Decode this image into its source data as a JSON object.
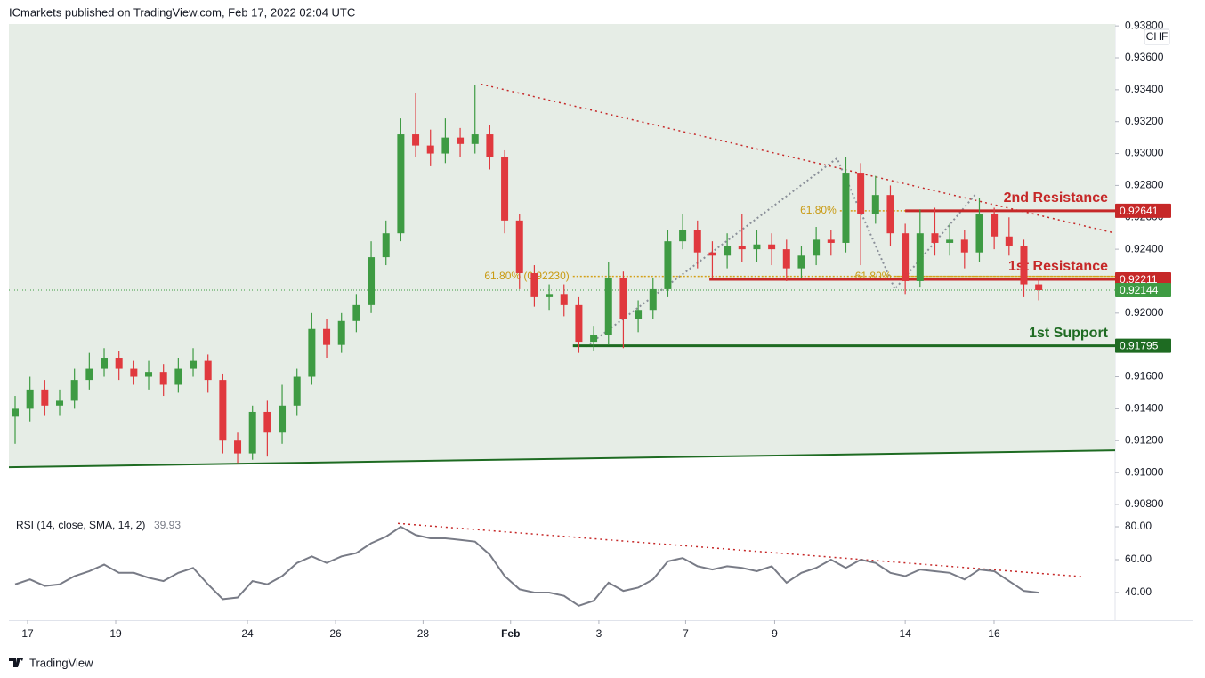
{
  "header": "ICmarkets published on TradingView.com, Feb 17, 2022 02:04 UTC",
  "footer": "TradingView",
  "chart_data": {
    "type": "candlestick",
    "currency": "CHF",
    "xlim": [
      -0.42,
      74.15
    ],
    "xticks": [
      {
        "value": 0.84,
        "label": "17"
      },
      {
        "value": 6.78,
        "label": "19"
      },
      {
        "value": 15.66,
        "label": "24"
      },
      {
        "value": 21.6,
        "label": "26"
      },
      {
        "value": 27.5,
        "label": "28"
      },
      {
        "value": 33.4,
        "label": "Feb"
      },
      {
        "value": 39.35,
        "label": "3"
      },
      {
        "value": 45.2,
        "label": "7"
      },
      {
        "value": 51.2,
        "label": "9"
      },
      {
        "value": 60.0,
        "label": "14"
      },
      {
        "value": 65.99,
        "label": "16"
      }
    ],
    "ylim": [
      0.90755,
      0.93812
    ],
    "yticks": [
      {
        "value": 0.938,
        "label": "0.93800"
      },
      {
        "value": 0.936,
        "label": "0.93600"
      },
      {
        "value": 0.934,
        "label": "0.93400"
      },
      {
        "value": 0.932,
        "label": "0.93200"
      },
      {
        "value": 0.93,
        "label": "0.93000"
      },
      {
        "value": 0.928,
        "label": "0.92800"
      },
      {
        "value": 0.926,
        "label": "0.92600"
      },
      {
        "value": 0.924,
        "label": "0.92400"
      },
      {
        "value": 0.922,
        "label": "0.92200"
      },
      {
        "value": 0.92,
        "label": "0.92000"
      },
      {
        "value": 0.918,
        "label": "0.91800"
      },
      {
        "value": 0.916,
        "label": "0.91600"
      },
      {
        "value": 0.914,
        "label": "0.91400"
      },
      {
        "value": 0.912,
        "label": "0.91200"
      },
      {
        "value": 0.91,
        "label": "0.91000"
      },
      {
        "value": 0.908,
        "label": "0.90800"
      }
    ],
    "grid": false,
    "up_color": "#3e9b43",
    "down_color": "#e0393e",
    "open": [
      0.9135,
      0.914,
      0.9152,
      0.9142,
      0.9145,
      0.9158,
      0.9165,
      0.9172,
      0.9165,
      0.916,
      0.9163,
      0.9155,
      0.9165,
      0.917,
      0.9158,
      0.912,
      0.9112,
      0.9138,
      0.9125,
      0.9142,
      0.916,
      0.919,
      0.918,
      0.9195,
      0.9205,
      0.9235,
      0.925,
      0.9312,
      0.9305,
      0.93,
      0.931,
      0.9306,
      0.9312,
      0.9298,
      0.9258,
      0.9225,
      0.921,
      0.9212,
      0.9205,
      0.9182,
      0.9186,
      0.9222,
      0.9196,
      0.9202,
      0.9215,
      0.9245,
      0.9252,
      0.9238,
      0.9236,
      0.9242,
      0.924,
      0.9243,
      0.924,
      0.9228,
      0.9236,
      0.9246,
      0.9244,
      0.9288,
      0.9262,
      0.9274,
      0.925,
      0.922,
      0.925,
      0.9244,
      0.9246,
      0.9238,
      0.9262,
      0.9248,
      0.9242,
      0.9218
    ],
    "high": [
      0.9148,
      0.916,
      0.9158,
      0.9152,
      0.9165,
      0.9175,
      0.9178,
      0.9176,
      0.917,
      0.917,
      0.9168,
      0.9172,
      0.9178,
      0.9174,
      0.9162,
      0.9125,
      0.9142,
      0.9145,
      0.9155,
      0.9165,
      0.92,
      0.9196,
      0.92,
      0.9212,
      0.9245,
      0.9258,
      0.9322,
      0.9338,
      0.9315,
      0.9322,
      0.9316,
      0.9343,
      0.9318,
      0.9302,
      0.9262,
      0.923,
      0.9218,
      0.9218,
      0.921,
      0.9192,
      0.9232,
      0.9226,
      0.9208,
      0.9222,
      0.9252,
      0.9262,
      0.9258,
      0.9245,
      0.925,
      0.9262,
      0.9252,
      0.925,
      0.9246,
      0.9242,
      0.9254,
      0.9252,
      0.9298,
      0.9294,
      0.9286,
      0.928,
      0.9256,
      0.9265,
      0.9266,
      0.9256,
      0.9252,
      0.9272,
      0.9266,
      0.926,
      0.9246,
      0.9222
    ],
    "low": [
      0.9118,
      0.9132,
      0.9136,
      0.9136,
      0.914,
      0.9152,
      0.916,
      0.9158,
      0.9155,
      0.9152,
      0.9148,
      0.915,
      0.916,
      0.915,
      0.9112,
      0.9106,
      0.9108,
      0.911,
      0.9118,
      0.9136,
      0.9155,
      0.9172,
      0.9175,
      0.9188,
      0.92,
      0.923,
      0.9245,
      0.9298,
      0.9292,
      0.9294,
      0.9298,
      0.93,
      0.929,
      0.925,
      0.9215,
      0.9204,
      0.9202,
      0.9198,
      0.9175,
      0.9176,
      0.918,
      0.9178,
      0.9188,
      0.9196,
      0.921,
      0.924,
      0.9228,
      0.9222,
      0.9228,
      0.9232,
      0.9232,
      0.923,
      0.922,
      0.9222,
      0.923,
      0.9236,
      0.9238,
      0.923,
      0.9256,
      0.9242,
      0.9212,
      0.9216,
      0.9236,
      0.9236,
      0.9228,
      0.9232,
      0.924,
      0.9236,
      0.921,
      0.9208
    ],
    "close": [
      0.914,
      0.9152,
      0.9142,
      0.9145,
      0.9158,
      0.9165,
      0.9172,
      0.9165,
      0.916,
      0.9163,
      0.9155,
      0.9165,
      0.917,
      0.9158,
      0.912,
      0.9112,
      0.9138,
      0.9125,
      0.9142,
      0.916,
      0.919,
      0.918,
      0.9195,
      0.9205,
      0.9235,
      0.925,
      0.9312,
      0.9305,
      0.93,
      0.931,
      0.9306,
      0.9312,
      0.9298,
      0.9258,
      0.9225,
      0.921,
      0.9212,
      0.9205,
      0.9182,
      0.9186,
      0.9222,
      0.9196,
      0.9202,
      0.9215,
      0.9245,
      0.9252,
      0.9238,
      0.9236,
      0.9242,
      0.924,
      0.9243,
      0.924,
      0.9228,
      0.9236,
      0.9246,
      0.9244,
      0.9288,
      0.9262,
      0.9274,
      0.925,
      0.922,
      0.925,
      0.9244,
      0.9246,
      0.9238,
      0.9262,
      0.9248,
      0.9242,
      0.9218,
      0.92144
    ],
    "last_price": 0.92144,
    "levels": [
      {
        "label": "2nd Resistance",
        "value": 0.92641,
        "start": 60.0,
        "color": "#c62828"
      },
      {
        "label": "1st Resistance",
        "value": 0.92211,
        "start": 46.8,
        "color": "#c62828"
      },
      {
        "label": "1st Support",
        "value": 0.91795,
        "start": 37.6,
        "color": "#1e6b22"
      }
    ],
    "fib_levels": [
      {
        "label": "61.80% (0.92230)",
        "value": 0.9223,
        "start": 37.6
      },
      {
        "label": "61.80%",
        "value": 0.92641,
        "start": 55.6
      },
      {
        "label": "61.80%",
        "value": 0.9223,
        "start": 59.3
      }
    ],
    "trendlines": [
      {
        "x": [
          31.4,
          73.97
        ],
        "y": [
          0.93435,
          0.92505
        ],
        "color": "#c62828",
        "style": "dotted"
      },
      {
        "x": [
          -0.42,
          74.15
        ],
        "y": [
          0.91033,
          0.91139
        ],
        "color": "#1e6b22",
        "style": "solid"
      }
    ],
    "zigzag": {
      "x": [
        38.5,
        55.4,
        59.3,
        64.7
      ],
      "y": [
        0.9179,
        0.9297,
        0.9215,
        0.9274
      ]
    },
    "rsi": {
      "label": "RSI (14, close, SMA, 14, 2)",
      "last": 39.93,
      "ylim": [
        23.24,
        87.57
      ],
      "yticks": [
        {
          "value": 80,
          "label": "80.00"
        },
        {
          "value": 60,
          "label": "60.00"
        },
        {
          "value": 40,
          "label": "40.00"
        }
      ],
      "color": "#787b86",
      "values": [
        45,
        48,
        44,
        45,
        50,
        53,
        57,
        52,
        52,
        49,
        47,
        52,
        55,
        45,
        36,
        37,
        47,
        45,
        50,
        58,
        62,
        58,
        62,
        64,
        70,
        74,
        80,
        75,
        73,
        73,
        72,
        71,
        63,
        50,
        42,
        40,
        40,
        38,
        32,
        35,
        46,
        41,
        43,
        48,
        59,
        61,
        56,
        54,
        56,
        55,
        53,
        56,
        46,
        52,
        55,
        60,
        55,
        60,
        58,
        52,
        50,
        54,
        53,
        52,
        48,
        54,
        53,
        47,
        41,
        39.93
      ],
      "trendline": {
        "x": [
          25.8,
          71.9
        ],
        "y": [
          82,
          49.7
        ]
      }
    }
  }
}
